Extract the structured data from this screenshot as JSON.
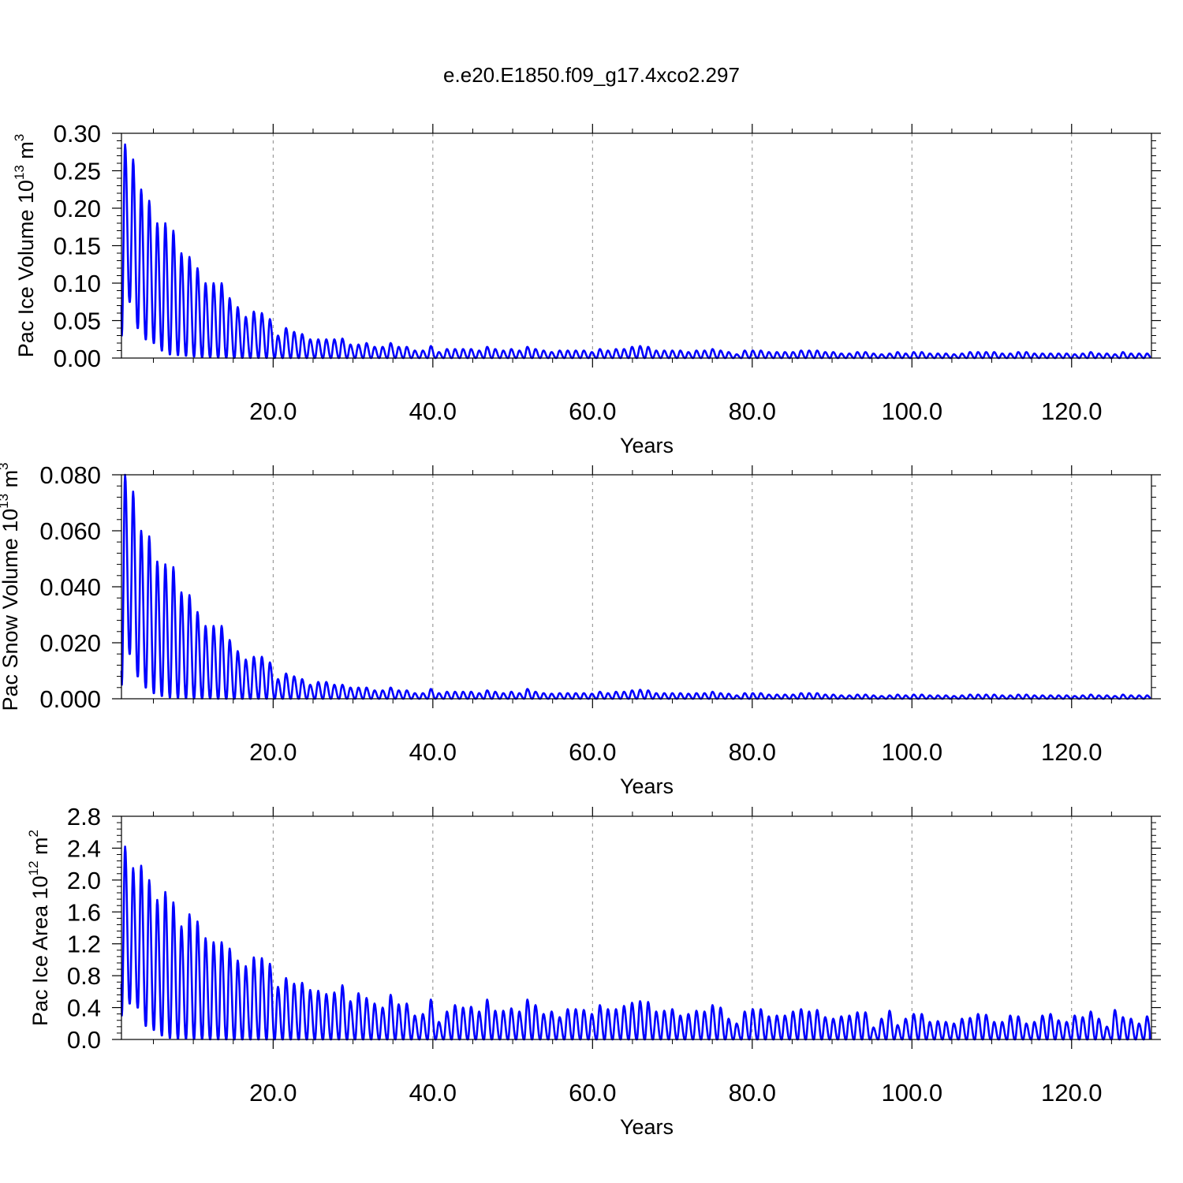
{
  "title": "e.e20.E1850.f09_g17.4xco2.297",
  "colors": {
    "series": "#0000ff",
    "axis": "#000000",
    "grid": "#888888"
  },
  "chart_data": [
    {
      "type": "line",
      "ylabel": "Pac Ice Volume 10",
      "ylabel_exp": "13",
      "ylabel_unit": "m",
      "ylabel_unit_exp": "3",
      "xlabel": "Years",
      "xlim": [
        1,
        130
      ],
      "ylim": [
        0,
        0.3
      ],
      "yticks": [
        0.0,
        0.05,
        0.1,
        0.15,
        0.2,
        0.25,
        0.3
      ],
      "ytick_labels": [
        "0.00",
        "0.05",
        "0.10",
        "0.15",
        "0.20",
        "0.25",
        "0.30"
      ],
      "xticks": [
        20,
        40,
        60,
        80,
        100,
        120
      ],
      "xtick_labels": [
        "20.0",
        "40.0",
        "60.0",
        "80.0",
        "100.0",
        "120.0"
      ],
      "grid": "vertical dashed",
      "series": [
        {
          "start_value": 0.07,
          "peaks": [
            0.285,
            0.265,
            0.225,
            0.21,
            0.18,
            0.18,
            0.17,
            0.14,
            0.135,
            0.12,
            0.1,
            0.1,
            0.1,
            0.08,
            0.068,
            0.055,
            0.062,
            0.06,
            0.052,
            0.03,
            0.04,
            0.035,
            0.032,
            0.025,
            0.025,
            0.025,
            0.025,
            0.026,
            0.018,
            0.018,
            0.02,
            0.015,
            0.015,
            0.02,
            0.015,
            0.015,
            0.01,
            0.01,
            0.016,
            0.008,
            0.012,
            0.012,
            0.012,
            0.012,
            0.01,
            0.015,
            0.012,
            0.01,
            0.012,
            0.01,
            0.015,
            0.012,
            0.01,
            0.008,
            0.01,
            0.01,
            0.01,
            0.01,
            0.008,
            0.012,
            0.01,
            0.012,
            0.012,
            0.015,
            0.016,
            0.015,
            0.01,
            0.01,
            0.01,
            0.01,
            0.008,
            0.01,
            0.01,
            0.012,
            0.01,
            0.008,
            0.005,
            0.01,
            0.01,
            0.01,
            0.008,
            0.008,
            0.008,
            0.008,
            0.01,
            0.01,
            0.01,
            0.008,
            0.008,
            0.006,
            0.006,
            0.008,
            0.008,
            0.006,
            0.005,
            0.006,
            0.008,
            0.006,
            0.008,
            0.008,
            0.006,
            0.006,
            0.006,
            0.005,
            0.006,
            0.008,
            0.008,
            0.008,
            0.008,
            0.006,
            0.006,
            0.008,
            0.008,
            0.006,
            0.006,
            0.006,
            0.006,
            0.006,
            0.005,
            0.006,
            0.008,
            0.006,
            0.006,
            0.005,
            0.008,
            0.006,
            0.006,
            0.006
          ],
          "troughs": [
            0.03,
            0.075,
            0.04,
            0.025,
            0.02,
            0.01,
            0.005,
            0.004,
            0.003,
            0.002,
            0.001,
            0.001,
            0.0005,
            0.0005,
            0.0003,
            0.0003,
            0.0002,
            0.0002,
            0.0002,
            0.0001,
            0.0001,
            0.0001,
            0.0001,
            0.0001,
            0.0001,
            0.0001,
            0.0001,
            0.0001,
            0.0001,
            0.0001
          ]
        }
      ]
    },
    {
      "type": "line",
      "ylabel": "Pac Snow Volume 10",
      "ylabel_exp": "13",
      "ylabel_unit": "m",
      "ylabel_unit_exp": "3",
      "xlabel": "Years",
      "xlim": [
        1,
        130
      ],
      "ylim": [
        0,
        0.08
      ],
      "yticks": [
        0.0,
        0.02,
        0.04,
        0.06,
        0.08
      ],
      "ytick_labels": [
        "0.000",
        "0.020",
        "0.040",
        "0.060",
        "0.080"
      ],
      "xticks": [
        20,
        40,
        60,
        80,
        100,
        120
      ],
      "xtick_labels": [
        "20.0",
        "40.0",
        "60.0",
        "80.0",
        "100.0",
        "120.0"
      ],
      "grid": "vertical dashed",
      "series": [
        {
          "start_value": 0.01,
          "peaks": [
            0.08,
            0.074,
            0.06,
            0.058,
            0.049,
            0.048,
            0.047,
            0.038,
            0.037,
            0.031,
            0.026,
            0.026,
            0.026,
            0.021,
            0.017,
            0.014,
            0.015,
            0.015,
            0.013,
            0.007,
            0.009,
            0.008,
            0.007,
            0.005,
            0.006,
            0.006,
            0.005,
            0.005,
            0.004,
            0.004,
            0.004,
            0.003,
            0.003,
            0.004,
            0.003,
            0.003,
            0.002,
            0.002,
            0.0035,
            0.002,
            0.0025,
            0.0025,
            0.0025,
            0.0025,
            0.002,
            0.003,
            0.0025,
            0.002,
            0.0025,
            0.002,
            0.0035,
            0.0025,
            0.002,
            0.0018,
            0.002,
            0.002,
            0.002,
            0.002,
            0.0018,
            0.0025,
            0.002,
            0.0025,
            0.0025,
            0.003,
            0.0032,
            0.003,
            0.002,
            0.002,
            0.002,
            0.002,
            0.0018,
            0.002,
            0.002,
            0.0025,
            0.002,
            0.0018,
            0.0012,
            0.002,
            0.002,
            0.002,
            0.0015,
            0.0015,
            0.0015,
            0.0015,
            0.002,
            0.002,
            0.002,
            0.0015,
            0.0015,
            0.0012,
            0.0012,
            0.0015,
            0.0015,
            0.0012,
            0.001,
            0.0012,
            0.0015,
            0.0012,
            0.0015,
            0.0015,
            0.0012,
            0.0012,
            0.0012,
            0.001,
            0.0012,
            0.0015,
            0.0015,
            0.0015,
            0.0015,
            0.0012,
            0.0012,
            0.0015,
            0.0015,
            0.0012,
            0.0012,
            0.0012,
            0.0012,
            0.0012,
            0.001,
            0.0012,
            0.0015,
            0.0012,
            0.0012,
            0.001,
            0.0015,
            0.0012,
            0.0012,
            0.0012
          ],
          "troughs": [
            0.005,
            0.016,
            0.008,
            0.004,
            0.002,
            0.001,
            0.0005,
            0.0003,
            0.0002,
            0.0001,
            0.0001,
            0.0001
          ]
        }
      ]
    },
    {
      "type": "line",
      "ylabel": "Pac Ice Area 10",
      "ylabel_exp": "12",
      "ylabel_unit": "m",
      "ylabel_unit_exp": "2",
      "xlabel": "Years",
      "xlim": [
        1,
        130
      ],
      "ylim": [
        0,
        2.8
      ],
      "yticks": [
        0.0,
        0.4,
        0.8,
        1.2,
        1.6,
        2.0,
        2.4,
        2.8
      ],
      "ytick_labels": [
        "0.0",
        "0.4",
        "0.8",
        "1.2",
        "1.6",
        "2.0",
        "2.4",
        "2.8"
      ],
      "xticks": [
        20,
        40,
        60,
        80,
        100,
        120
      ],
      "xtick_labels": [
        "20.0",
        "40.0",
        "60.0",
        "80.0",
        "100.0",
        "120.0"
      ],
      "grid": "vertical dashed",
      "series": [
        {
          "start_value": 0.7,
          "peaks": [
            2.42,
            2.15,
            2.18,
            2.0,
            1.75,
            1.85,
            1.72,
            1.42,
            1.57,
            1.48,
            1.27,
            1.22,
            1.22,
            1.14,
            0.99,
            0.92,
            1.03,
            1.02,
            0.95,
            0.66,
            0.77,
            0.7,
            0.71,
            0.62,
            0.61,
            0.57,
            0.59,
            0.68,
            0.48,
            0.58,
            0.52,
            0.45,
            0.4,
            0.56,
            0.44,
            0.45,
            0.3,
            0.32,
            0.5,
            0.22,
            0.35,
            0.43,
            0.4,
            0.41,
            0.35,
            0.5,
            0.36,
            0.36,
            0.39,
            0.35,
            0.5,
            0.43,
            0.32,
            0.35,
            0.28,
            0.38,
            0.38,
            0.37,
            0.32,
            0.43,
            0.38,
            0.38,
            0.42,
            0.46,
            0.48,
            0.47,
            0.35,
            0.36,
            0.38,
            0.3,
            0.32,
            0.36,
            0.35,
            0.43,
            0.4,
            0.26,
            0.2,
            0.35,
            0.38,
            0.38,
            0.29,
            0.3,
            0.3,
            0.35,
            0.38,
            0.35,
            0.37,
            0.28,
            0.26,
            0.29,
            0.3,
            0.34,
            0.34,
            0.15,
            0.26,
            0.36,
            0.18,
            0.26,
            0.32,
            0.32,
            0.22,
            0.23,
            0.22,
            0.2,
            0.26,
            0.27,
            0.32,
            0.31,
            0.22,
            0.22,
            0.3,
            0.29,
            0.2,
            0.22,
            0.3,
            0.32,
            0.24,
            0.22,
            0.3,
            0.28,
            0.35,
            0.26,
            0.16,
            0.37,
            0.28,
            0.26,
            0.2,
            0.29
          ],
          "troughs": [
            0.3,
            0.45,
            0.4,
            0.17,
            0.12,
            0.05,
            0.02,
            0.01,
            0.01,
            0.005,
            0.005,
            0.002,
            0.002,
            0.002
          ]
        }
      ]
    }
  ]
}
